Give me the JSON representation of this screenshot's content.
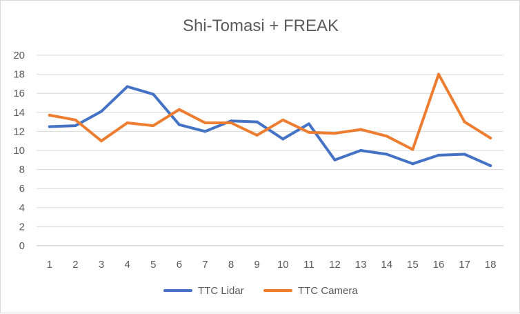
{
  "chart_data": {
    "type": "line",
    "title": "Shi-Tomasi + FREAK",
    "xlabel": "",
    "ylabel": "",
    "x": [
      1,
      2,
      3,
      4,
      5,
      6,
      7,
      8,
      9,
      10,
      11,
      12,
      13,
      14,
      15,
      16,
      17,
      18
    ],
    "ylim": [
      0,
      20
    ],
    "yticks": [
      0,
      2,
      4,
      6,
      8,
      10,
      12,
      14,
      16,
      18,
      20
    ],
    "grid": true,
    "legend_position": "bottom",
    "series": [
      {
        "name": "TTC Lidar",
        "color": "#4472c4",
        "values": [
          12.5,
          12.6,
          14.1,
          16.7,
          15.9,
          12.7,
          12.0,
          13.1,
          13.0,
          11.2,
          12.8,
          9.0,
          10.0,
          9.6,
          8.6,
          9.5,
          9.6,
          8.4
        ]
      },
      {
        "name": "TTC Camera",
        "color": "#ed7d31",
        "values": [
          13.7,
          13.2,
          11.0,
          12.9,
          12.6,
          14.3,
          12.9,
          12.9,
          11.6,
          13.2,
          11.9,
          11.8,
          12.2,
          11.5,
          10.1,
          18.0,
          13.0,
          11.3
        ]
      }
    ]
  }
}
